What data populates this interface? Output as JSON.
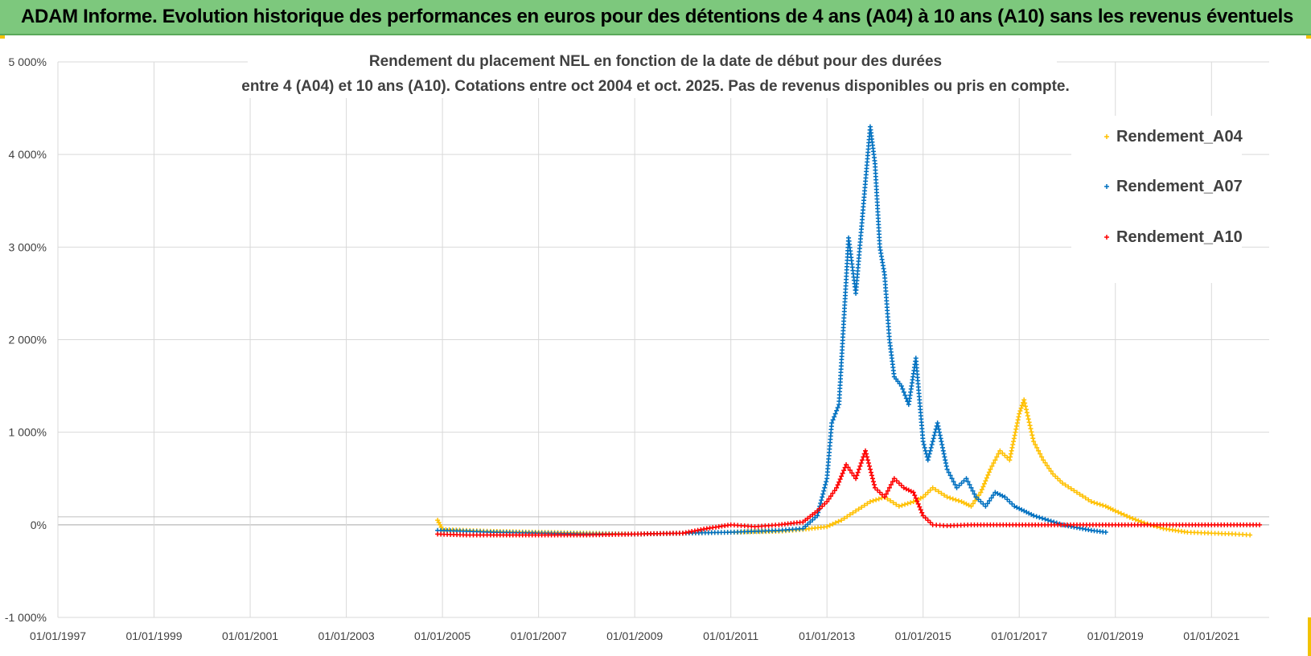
{
  "banner": {
    "title": "ADAM Informe. Evolution historique des performances en euros pour des détentions de 4 ans (A04) à 10 ans (A10) sans les revenus éventuels",
    "background": "#7dc87d"
  },
  "chart_data": {
    "type": "scatter",
    "title_lines": [
      "Rendement du placement NEL en fonction de la date de début pour des durées",
      "entre 4 (A04) et 10 ans (A10).  Cotations entre oct 2004 et oct. 2025. Pas de revenus disponibles ou pris en compte."
    ],
    "xlabel": "",
    "ylabel": "",
    "xlim": [
      1997.0,
      2022.2
    ],
    "ylim": [
      -1000,
      5000
    ],
    "x_ticks": [
      1997,
      1999,
      2001,
      2003,
      2005,
      2007,
      2009,
      2011,
      2013,
      2015,
      2017,
      2019,
      2021
    ],
    "x_tick_labels": [
      "01/01/1997",
      "01/01/1999",
      "01/01/2001",
      "01/01/2003",
      "01/01/2005",
      "01/01/2007",
      "01/01/2009",
      "01/01/2011",
      "01/01/2013",
      "01/01/2015",
      "01/01/2017",
      "01/01/2019",
      "01/01/2021"
    ],
    "y_ticks": [
      -1000,
      0,
      1000,
      2000,
      3000,
      4000,
      5000
    ],
    "y_tick_labels": [
      "-1 000%",
      "0%",
      "1 000%",
      "2 000%",
      "3 000%",
      "4 000%",
      "5 000%"
    ],
    "grid": true,
    "legend_position": "right",
    "series": [
      {
        "name": "Rendement_A04",
        "color": "#ffc000",
        "x": [
          2004.9,
          2005.0,
          2005.5,
          2006.0,
          2007.0,
          2008.0,
          2009.0,
          2010.0,
          2011.0,
          2012.0,
          2012.5,
          2013.0,
          2013.3,
          2013.6,
          2013.9,
          2014.2,
          2014.5,
          2014.8,
          2015.0,
          2015.2,
          2015.5,
          2015.8,
          2016.0,
          2016.2,
          2016.4,
          2016.6,
          2016.8,
          2017.0,
          2017.1,
          2017.3,
          2017.5,
          2017.7,
          2017.9,
          2018.2,
          2018.5,
          2018.8,
          2019.0,
          2019.3,
          2019.6,
          2020.0,
          2020.5,
          2021.0,
          2021.5,
          2021.8
        ],
        "y": [
          50,
          -50,
          -60,
          -70,
          -80,
          -90,
          -100,
          -90,
          -80,
          -70,
          -50,
          -20,
          50,
          150,
          250,
          300,
          200,
          250,
          300,
          400,
          300,
          250,
          200,
          350,
          600,
          800,
          700,
          1200,
          1350,
          900,
          700,
          550,
          450,
          350,
          250,
          200,
          150,
          80,
          20,
          -40,
          -80,
          -90,
          -100,
          -110
        ]
      },
      {
        "name": "Rendement_A07",
        "color": "#0070c0",
        "x": [
          2004.9,
          2005.5,
          2006.0,
          2007.0,
          2008.0,
          2009.0,
          2010.0,
          2011.0,
          2011.5,
          2012.0,
          2012.5,
          2012.8,
          2013.0,
          2013.1,
          2013.25,
          2013.35,
          2013.45,
          2013.6,
          2013.75,
          2013.9,
          2014.0,
          2014.1,
          2014.2,
          2014.3,
          2014.4,
          2014.55,
          2014.7,
          2014.85,
          2015.0,
          2015.1,
          2015.3,
          2015.5,
          2015.7,
          2015.9,
          2016.1,
          2016.3,
          2016.5,
          2016.7,
          2016.9,
          2017.1,
          2017.3,
          2017.6,
          2017.9,
          2018.2,
          2018.5,
          2018.8
        ],
        "y": [
          -60,
          -70,
          -80,
          -90,
          -100,
          -100,
          -90,
          -80,
          -70,
          -60,
          -40,
          100,
          500,
          1100,
          1300,
          2200,
          3100,
          2500,
          3400,
          4300,
          3900,
          3000,
          2700,
          2000,
          1600,
          1500,
          1300,
          1800,
          900,
          700,
          1100,
          600,
          400,
          500,
          300,
          200,
          350,
          300,
          200,
          150,
          100,
          50,
          0,
          -30,
          -60,
          -80
        ]
      },
      {
        "name": "Rendement_A10",
        "color": "#ff0000",
        "x": [
          2004.9,
          2005.5,
          2006.0,
          2007.0,
          2008.0,
          2009.0,
          2010.0,
          2010.5,
          2011.0,
          2011.5,
          2012.0,
          2012.5,
          2012.8,
          2013.0,
          2013.2,
          2013.4,
          2013.6,
          2013.8,
          2014.0,
          2014.2,
          2014.4,
          2014.6,
          2014.8,
          2015.0,
          2015.2,
          2015.5,
          2016.0,
          2017.0,
          2018.0,
          2019.0,
          2020.0,
          2021.0,
          2022.0
        ],
        "y": [
          -100,
          -110,
          -110,
          -110,
          -110,
          -100,
          -90,
          -40,
          0,
          -20,
          0,
          30,
          150,
          250,
          400,
          650,
          500,
          800,
          400,
          300,
          500,
          400,
          350,
          100,
          0,
          -10,
          0,
          0,
          0,
          0,
          0,
          0,
          0
        ]
      }
    ]
  }
}
